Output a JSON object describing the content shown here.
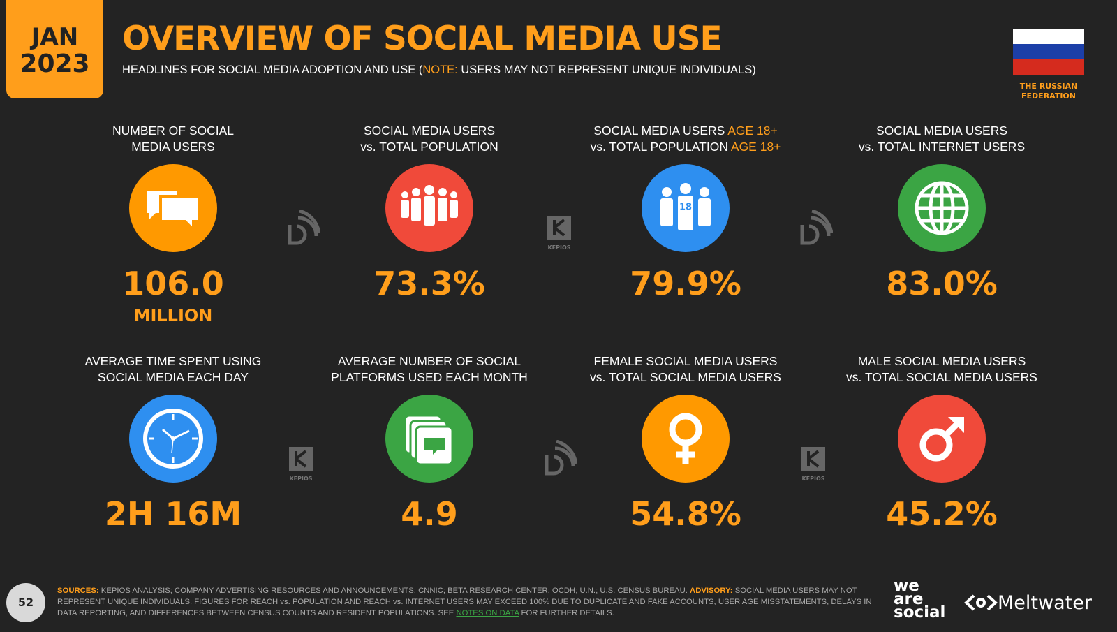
{
  "header": {
    "badge_month": "JAN",
    "badge_year": "2023",
    "title": "OVERVIEW OF SOCIAL MEDIA USE",
    "subtitle": [
      "HEADLINES FOR SOCIAL MEDIA ADOPTION AND USE (",
      "NOTE:",
      "USERS MAY NOT REPRESENT UNIQUE INDIVIDUALS)"
    ],
    "country": [
      "THE RUSSIAN",
      "FEDERATION"
    ]
  },
  "tiles": [
    {
      "label": [
        [
          "NUMBER OF SOCIAL"
        ],
        [
          "MEDIA USERS"
        ]
      ],
      "value": "106.0",
      "unit": "MILLION"
    },
    {
      "label": [
        [
          "SOCIAL MEDIA USERS"
        ],
        [
          "vs. TOTAL POPULATION"
        ]
      ],
      "value": "73.3%"
    },
    {
      "label": [
        [
          "SOCIAL MEDIA USERS",
          "AGE 18+"
        ],
        [
          "vs. TOTAL POPULATION",
          "AGE 18+"
        ]
      ],
      "value": "79.9%",
      "icon_text": "18"
    },
    {
      "label": [
        [
          "SOCIAL MEDIA USERS"
        ],
        [
          "vs. TOTAL INTERNET USERS"
        ]
      ],
      "value": "83.0%"
    },
    {
      "label": [
        [
          "AVERAGE TIME SPENT USING"
        ],
        [
          "SOCIAL MEDIA EACH DAY"
        ]
      ],
      "value": "2H 16M"
    },
    {
      "label": [
        [
          "AVERAGE NUMBER OF SOCIAL"
        ],
        [
          "PLATFORMS USED EACH MONTH"
        ]
      ],
      "value": "4.9"
    },
    {
      "label": [
        [
          "FEMALE SOCIAL MEDIA USERS"
        ],
        [
          "vs. TOTAL SOCIAL MEDIA USERS"
        ]
      ],
      "value": "54.8%"
    },
    {
      "label": [
        [
          "MALE SOCIAL MEDIA USERS"
        ],
        [
          "vs. TOTAL SOCIAL MEDIA USERS"
        ]
      ],
      "value": "45.2%"
    }
  ],
  "watermark_label": "KEPIOS",
  "footer": {
    "page_number": "52",
    "sources": [
      "SOURCES:",
      "KEPIOS ANALYSIS; COMPANY ADVERTISING RESOURCES AND ANNOUNCEMENTS; CNNIC; BETA RESEARCH CENTER; OCDH; U.N.; U.S. CENSUS BUREAU.",
      "ADVISORY:",
      "SOCIAL MEDIA USERS MAY NOT REPRESENT UNIQUE INDIVIDUALS. FIGURES FOR REACH vs. POPULATION AND REACH vs. INTERNET USERS MAY EXCEED 100% DUE TO DUPLICATE AND FAKE ACCOUNTS, USER AGE MISSTATEMENTS, DELAYS IN DATA REPORTING, AND DIFFERENCES BETWEEN CENSUS COUNTS AND RESIDENT POPULATIONS. SEE",
      "NOTES ON DATA",
      "FOR FURTHER DETAILS."
    ],
    "brand_1": [
      "we",
      "are",
      "social"
    ],
    "brand_2": "Meltwater"
  }
}
